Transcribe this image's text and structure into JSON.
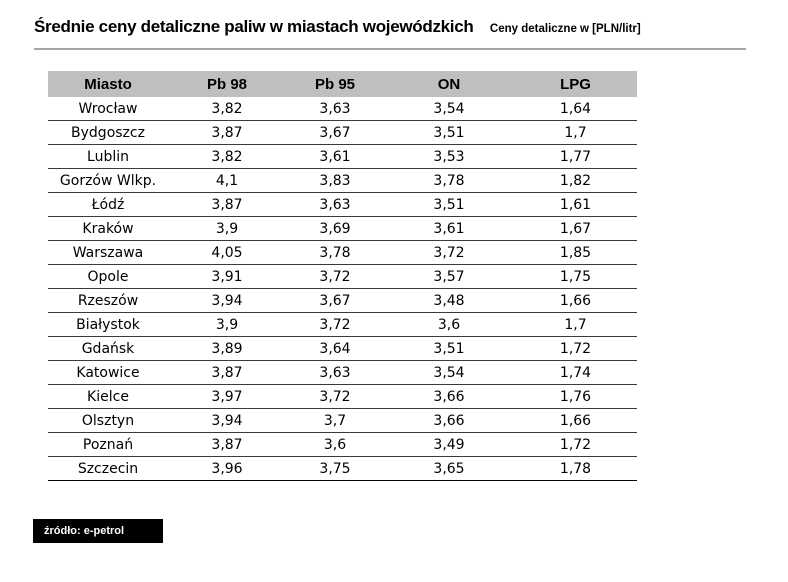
{
  "header": {
    "title": "Średnie ceny detaliczne paliw w miastach wojewódzkich",
    "subtitle": "Ceny detaliczne w [PLN/litr]"
  },
  "chart_data": {
    "type": "table",
    "columns": [
      "Miasto",
      "Pb 98",
      "Pb 95",
      "ON",
      "LPG"
    ],
    "rows": [
      [
        "Wrocław",
        "3,82",
        "3,63",
        "3,54",
        "1,64"
      ],
      [
        "Bydgoszcz",
        "3,87",
        "3,67",
        "3,51",
        "1,7"
      ],
      [
        "Lublin",
        "3,82",
        "3,61",
        "3,53",
        "1,77"
      ],
      [
        "Gorzów Wlkp.",
        "4,1",
        "3,83",
        "3,78",
        "1,82"
      ],
      [
        "Łódź",
        "3,87",
        "3,63",
        "3,51",
        "1,61"
      ],
      [
        "Kraków",
        "3,9",
        "3,69",
        "3,61",
        "1,67"
      ],
      [
        "Warszawa",
        "4,05",
        "3,78",
        "3,72",
        "1,85"
      ],
      [
        "Opole",
        "3,91",
        "3,72",
        "3,57",
        "1,75"
      ],
      [
        "Rzeszów",
        "3,94",
        "3,67",
        "3,48",
        "1,66"
      ],
      [
        "Białystok",
        "3,9",
        "3,72",
        "3,6",
        "1,7"
      ],
      [
        "Gdańsk",
        "3,89",
        "3,64",
        "3,51",
        "1,72"
      ],
      [
        "Katowice",
        "3,87",
        "3,63",
        "3,54",
        "1,74"
      ],
      [
        "Kielce",
        "3,97",
        "3,72",
        "3,66",
        "1,76"
      ],
      [
        "Olsztyn",
        "3,94",
        "3,7",
        "3,66",
        "1,66"
      ],
      [
        "Poznań",
        "3,87",
        "3,6",
        "3,49",
        "1,72"
      ],
      [
        "Szczecin",
        "3,96",
        "3,75",
        "3,65",
        "1,78"
      ]
    ]
  },
  "footer": {
    "source": "źródło: e-petrol"
  },
  "colors": {
    "header_bg": "#bfbfbf",
    "rule": "#a6a6a6",
    "source_bg": "#000000",
    "source_text": "#ffffff"
  }
}
